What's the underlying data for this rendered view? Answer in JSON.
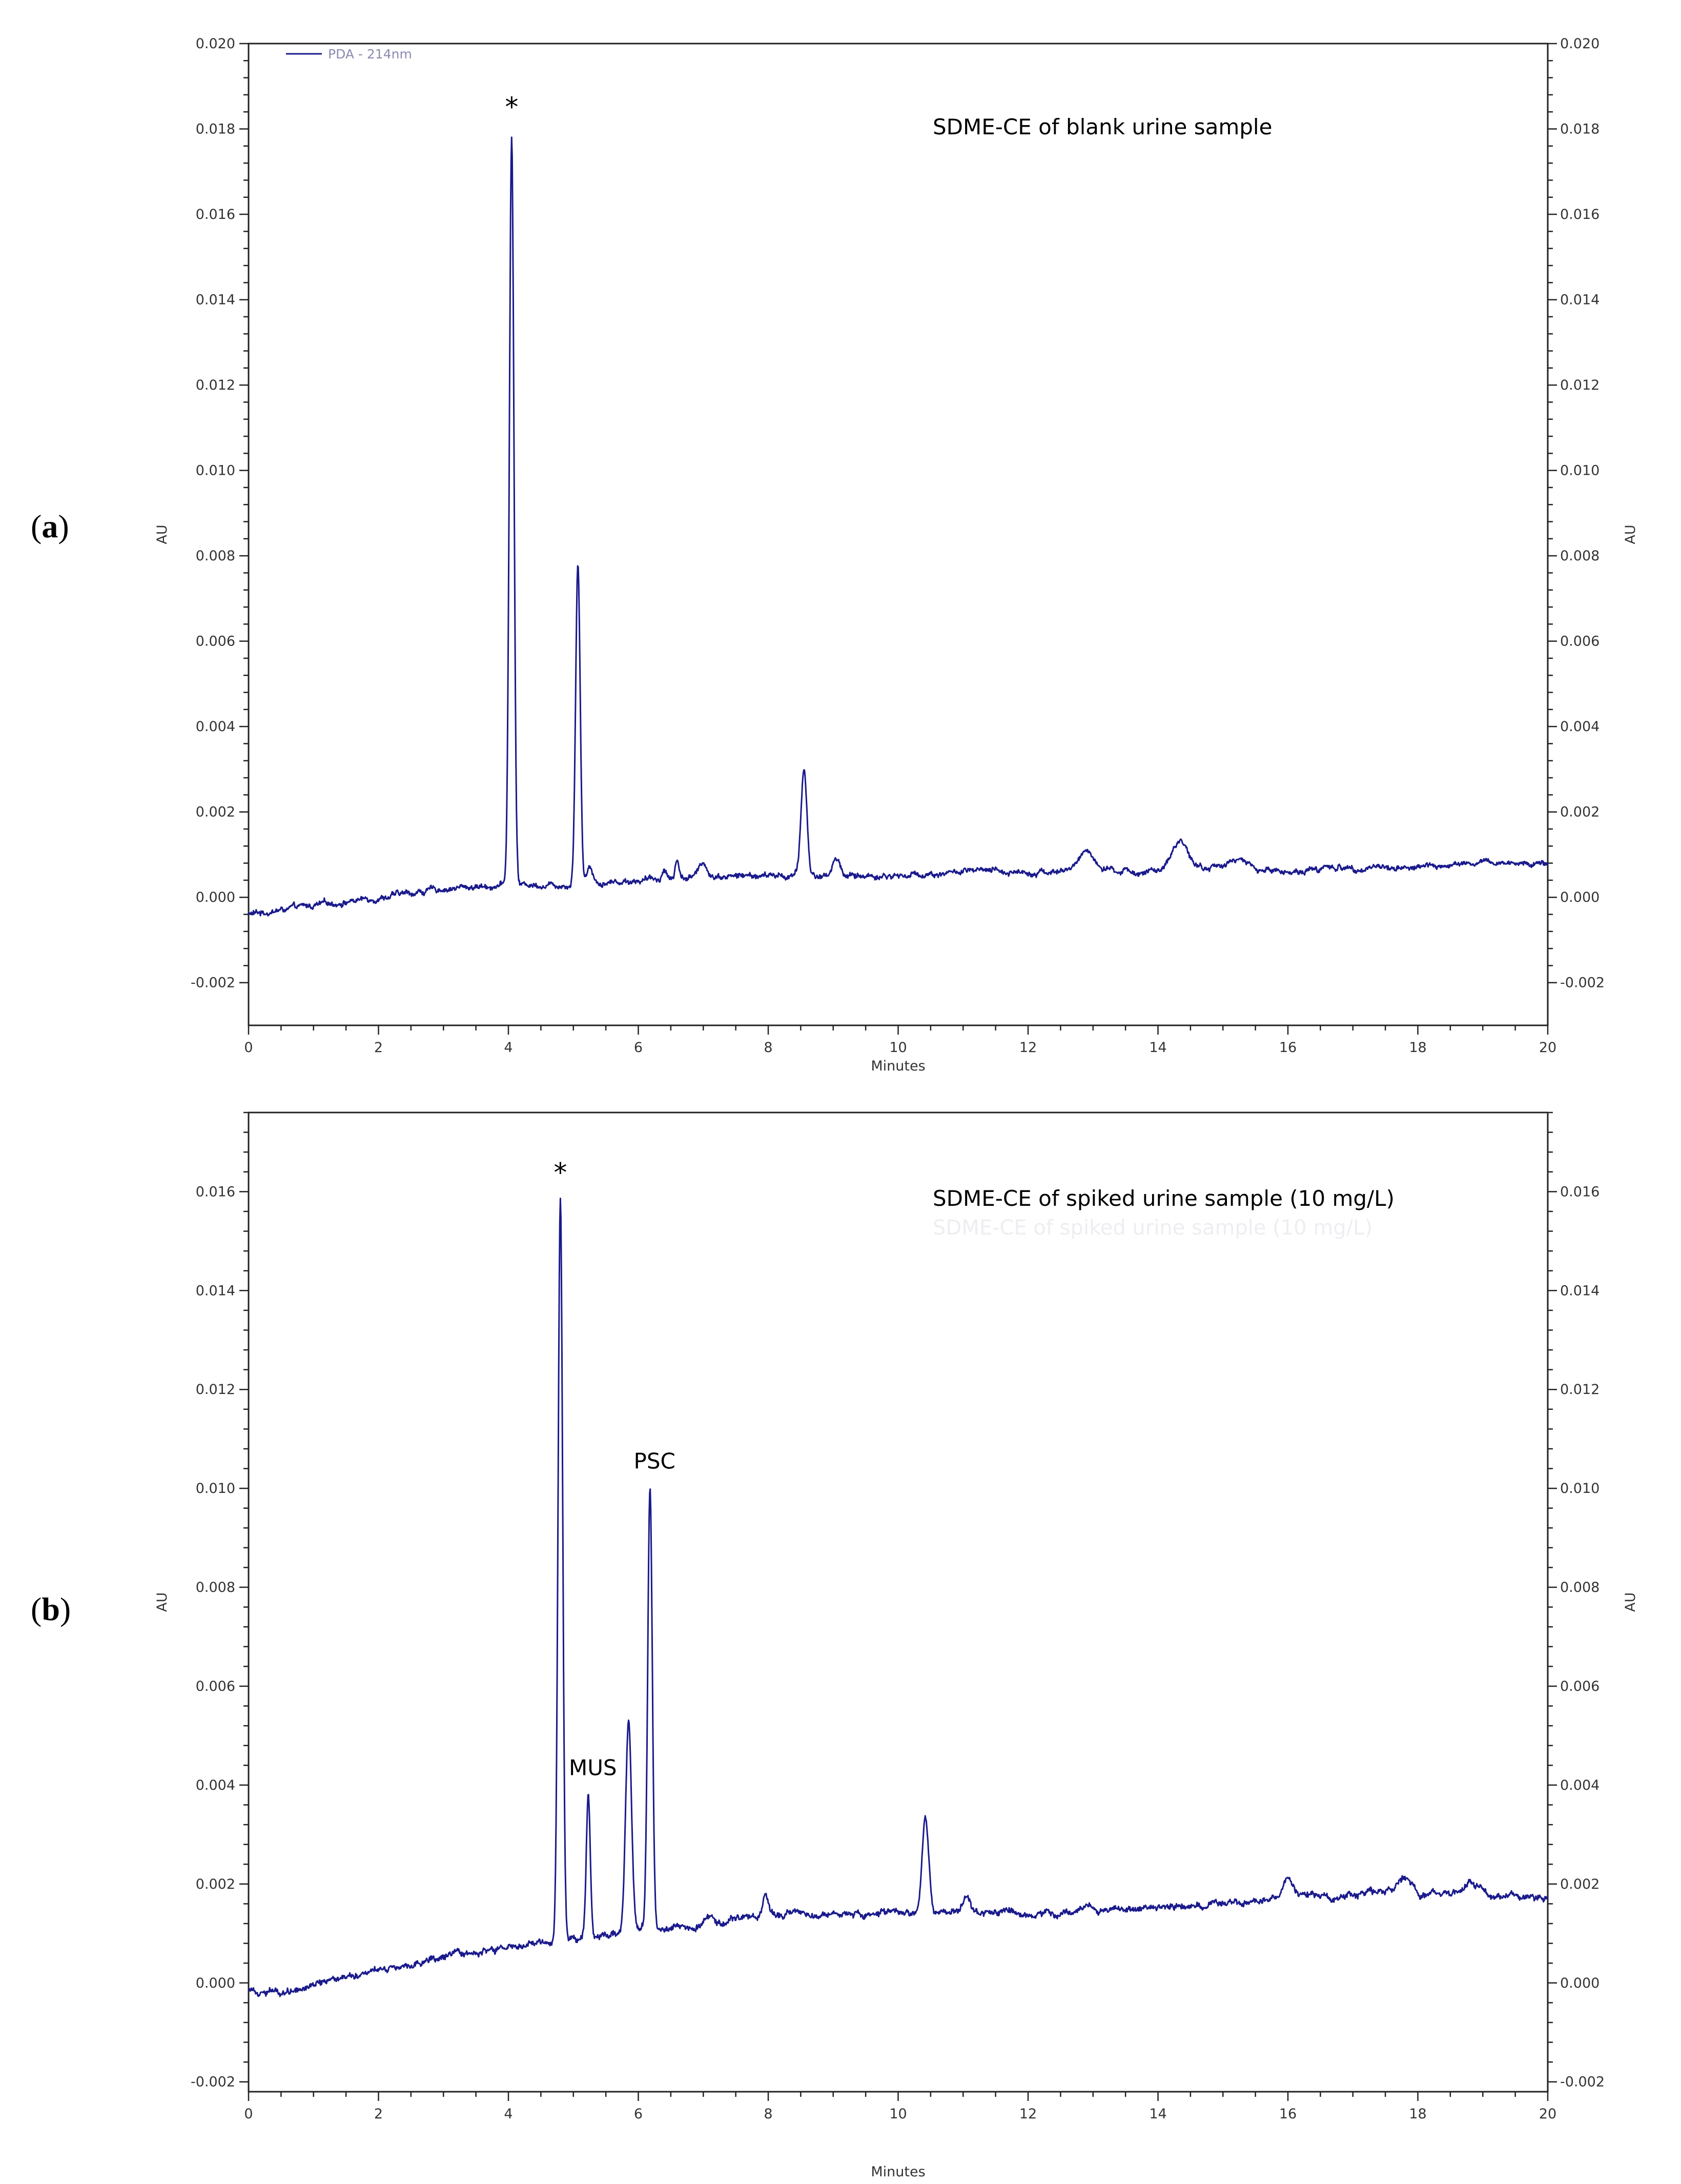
{
  "chart_data": [
    {
      "panel_label": "a",
      "type": "line",
      "title": "SDME-CE of blank urine sample",
      "xlabel": "Minutes",
      "ylabel": "AU",
      "xlim": [
        0,
        20
      ],
      "ylim": [
        -0.003,
        0.02
      ],
      "x_ticks": [
        0,
        2,
        4,
        6,
        8,
        10,
        12,
        14,
        16,
        18,
        20
      ],
      "y_ticks": [
        -0.002,
        0.0,
        0.002,
        0.004,
        0.006,
        0.008,
        0.01,
        0.012,
        0.014,
        0.016,
        0.018,
        0.02
      ],
      "y_tick_labels": [
        "-0.002",
        "0.000",
        "0.002",
        "0.004",
        "0.006",
        "0.008",
        "0.010",
        "0.012",
        "0.014",
        "0.016",
        "0.018",
        "0.020"
      ],
      "legend": "PDA - 214nm",
      "legend_position": "top-left",
      "line_color": "#1a1a8c",
      "baseline": [
        [
          0,
          -0.0004
        ],
        [
          1,
          -0.0002
        ],
        [
          2,
          0.0
        ],
        [
          3,
          0.0002
        ],
        [
          4,
          0.0003
        ],
        [
          5,
          0.0003
        ],
        [
          6,
          0.0004
        ],
        [
          7,
          0.0005
        ],
        [
          8,
          0.0005
        ],
        [
          9,
          0.0005
        ],
        [
          10,
          0.0005
        ],
        [
          11,
          0.0006
        ],
        [
          12,
          0.0006
        ],
        [
          13,
          0.0006
        ],
        [
          14,
          0.0006
        ],
        [
          15,
          0.0007
        ],
        [
          16,
          0.0006
        ],
        [
          17,
          0.0007
        ],
        [
          18,
          0.0007
        ],
        [
          19,
          0.0008
        ],
        [
          20,
          0.0008
        ]
      ],
      "peaks": [
        {
          "x": 4.05,
          "height": 0.0175,
          "width": 0.035
        },
        {
          "x": 5.07,
          "height": 0.0075,
          "width": 0.035
        },
        {
          "x": 5.25,
          "height": 0.0004,
          "width": 0.05
        },
        {
          "x": 6.4,
          "height": 0.0002,
          "width": 0.04
        },
        {
          "x": 6.6,
          "height": 0.0004,
          "width": 0.03
        },
        {
          "x": 7.0,
          "height": 0.0003,
          "width": 0.06
        },
        {
          "x": 8.55,
          "height": 0.0025,
          "width": 0.045
        },
        {
          "x": 9.05,
          "height": 0.0004,
          "width": 0.06
        },
        {
          "x": 12.9,
          "height": 0.0005,
          "width": 0.12
        },
        {
          "x": 14.35,
          "height": 0.0007,
          "width": 0.12
        },
        {
          "x": 15.2,
          "height": 0.0002,
          "width": 0.15
        },
        {
          "x": 16.6,
          "height": 0.0001,
          "width": 0.05
        }
      ],
      "annotations": [
        {
          "text": "*",
          "x": 4.05,
          "y": 0.0183
        }
      ]
    },
    {
      "panel_label": "b",
      "type": "line",
      "title": "SDME-CE of spiked urine sample (10 mg/L)",
      "ghost_title": "SDME-CE of spiked urine sample (10 mg/L)",
      "xlabel": "Minutes",
      "ylabel": "AU",
      "xlim": [
        0,
        20
      ],
      "ylim": [
        -0.0022,
        0.0176
      ],
      "x_ticks": [
        0,
        2,
        4,
        6,
        8,
        10,
        12,
        14,
        16,
        18,
        20
      ],
      "y_ticks": [
        -0.002,
        0.0,
        0.002,
        0.004,
        0.006,
        0.008,
        0.01,
        0.012,
        0.014,
        0.016
      ],
      "y_tick_labels": [
        "-0.002",
        "0.000",
        "0.002",
        "0.004",
        "0.006",
        "0.008",
        "0.010",
        "0.012",
        "0.014",
        "0.016"
      ],
      "line_color": "#1a1a8c",
      "baseline": [
        [
          0,
          -0.0001
        ],
        [
          0.5,
          -0.0002
        ],
        [
          1,
          0.0
        ],
        [
          2,
          0.0003
        ],
        [
          3,
          0.0005
        ],
        [
          4,
          0.0007
        ],
        [
          5,
          0.0009
        ],
        [
          6,
          0.0011
        ],
        [
          7,
          0.0012
        ],
        [
          8,
          0.0014
        ],
        [
          9,
          0.0014
        ],
        [
          10,
          0.0014
        ],
        [
          11,
          0.0014
        ],
        [
          12,
          0.0014
        ],
        [
          13,
          0.0015
        ],
        [
          14,
          0.0015
        ],
        [
          15,
          0.0016
        ],
        [
          16,
          0.0017
        ],
        [
          17,
          0.0018
        ],
        [
          18,
          0.0018
        ],
        [
          19,
          0.0018
        ],
        [
          20,
          0.0017
        ]
      ],
      "peaks": [
        {
          "x": 4.8,
          "height": 0.015,
          "width": 0.035
        },
        {
          "x": 5.23,
          "height": 0.0029,
          "width": 0.03
        },
        {
          "x": 5.85,
          "height": 0.0042,
          "width": 0.045
        },
        {
          "x": 6.18,
          "height": 0.0089,
          "width": 0.035
        },
        {
          "x": 7.1,
          "height": 0.0001,
          "width": 0.05
        },
        {
          "x": 7.95,
          "height": 0.0003,
          "width": 0.04
        },
        {
          "x": 10.42,
          "height": 0.0019,
          "width": 0.05
        },
        {
          "x": 11.05,
          "height": 0.0004,
          "width": 0.06
        },
        {
          "x": 16.0,
          "height": 0.0004,
          "width": 0.08
        },
        {
          "x": 17.8,
          "height": 0.0004,
          "width": 0.1
        },
        {
          "x": 18.8,
          "height": 0.0002,
          "width": 0.1
        }
      ],
      "annotations": [
        {
          "text": "*",
          "x": 4.8,
          "y": 0.0162
        },
        {
          "text": "PSC",
          "x": 6.25,
          "y": 0.0104
        },
        {
          "text": "MUS",
          "x": 5.3,
          "y": 0.0042
        }
      ]
    }
  ]
}
